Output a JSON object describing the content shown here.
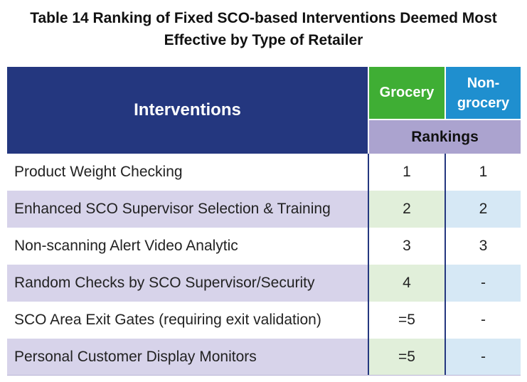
{
  "title": {
    "line1": "Table 14 Ranking of Fixed SCO-based Interventions Deemed Most",
    "line2": "Effective by Type of Retailer"
  },
  "header": {
    "interventions": "Interventions",
    "grocery": "Grocery",
    "nongrocery_1": "Non-",
    "nongrocery_2": "grocery",
    "rankings": "Rankings"
  },
  "rows": [
    {
      "intervention": "Product Weight Checking",
      "grocery": "1",
      "nongrocery": "1"
    },
    {
      "intervention": "Enhanced SCO Supervisor Selection & Training",
      "grocery": "2",
      "nongrocery": "2"
    },
    {
      "intervention": "Non-scanning Alert Video Analytic",
      "grocery": "3",
      "nongrocery": "3"
    },
    {
      "intervention": "Random Checks by SCO Supervisor/Security",
      "grocery": "4",
      "nongrocery": "-"
    },
    {
      "intervention": "SCO Area Exit Gates (requiring exit validation)",
      "grocery": "=5",
      "nongrocery": "-"
    },
    {
      "intervention": "Personal Customer Display Monitors",
      "grocery": "=5",
      "nongrocery": "-"
    }
  ],
  "colors": {
    "header_navy": "#24377f",
    "grocery_green": "#3fae34",
    "nongrocery_blue": "#1f8fcf",
    "rankings_lavender": "#aba3cf"
  }
}
